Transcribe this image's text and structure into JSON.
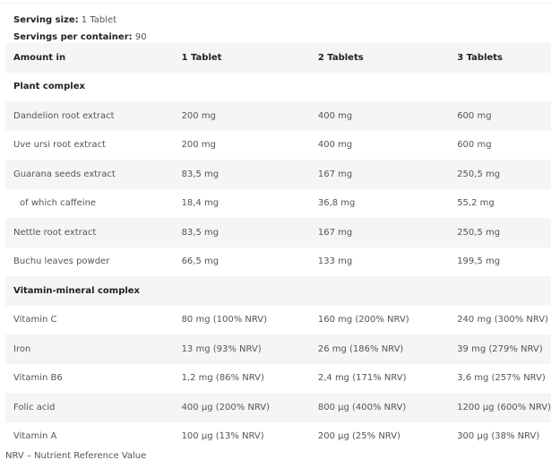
{
  "serving": {
    "size_label": "Serving size:",
    "size_value": "1 Tablet",
    "per_label": "Servings per container:",
    "per_value": "90"
  },
  "table": {
    "headers": [
      "Amount in",
      "1 Tablet",
      "2 Tablets",
      "3 Tablets"
    ],
    "rows": [
      {
        "type": "section",
        "cells": [
          "Plant complex",
          "",
          "",
          ""
        ]
      },
      {
        "type": "item",
        "cells": [
          "Dandelion root extract",
          "200 mg",
          "400 mg",
          "600 mg"
        ]
      },
      {
        "type": "item",
        "cells": [
          "Uve ursi root extract",
          "200 mg",
          "400 mg",
          "600 mg"
        ]
      },
      {
        "type": "item",
        "cells": [
          "Guarana seeds extract",
          "83,5 mg",
          "167 mg",
          "250,5 mg"
        ]
      },
      {
        "type": "sub",
        "cells": [
          "of which caffeine",
          "18,4 mg",
          "36,8 mg",
          "55,2 mg"
        ]
      },
      {
        "type": "item",
        "cells": [
          "Nettle root extract",
          "83,5 mg",
          "167 mg",
          "250,5 mg"
        ]
      },
      {
        "type": "item",
        "cells": [
          "Buchu leaves powder",
          "66,5 mg",
          "133 mg",
          "199,5 mg"
        ]
      },
      {
        "type": "section",
        "cells": [
          "Vitamin-mineral complex",
          "",
          "",
          ""
        ]
      },
      {
        "type": "item",
        "cells": [
          "Vitamin C",
          "80 mg (100% NRV)",
          "160 mg (200% NRV)",
          "240 mg (300% NRV)"
        ]
      },
      {
        "type": "item",
        "cells": [
          "Iron",
          "13 mg (93% NRV)",
          "26 mg (186% NRV)",
          "39 mg (279% NRV)"
        ]
      },
      {
        "type": "item",
        "cells": [
          "Vitamin B6",
          "1,2 mg (86% NRV)",
          "2,4 mg (171% NRV)",
          "3,6 mg (257% NRV)"
        ]
      },
      {
        "type": "item",
        "cells": [
          "Folic acid",
          "400 µg (200% NRV)",
          "800 µg (400% NRV)",
          "1200 µg (600% NRV)"
        ]
      },
      {
        "type": "item",
        "cells": [
          "Vitamin A",
          "100 µg (13% NRV)",
          "200 µg (25% NRV)",
          "300 µg (38% NRV)"
        ]
      }
    ]
  },
  "footnote": "NRV – Nutrient Reference Value"
}
